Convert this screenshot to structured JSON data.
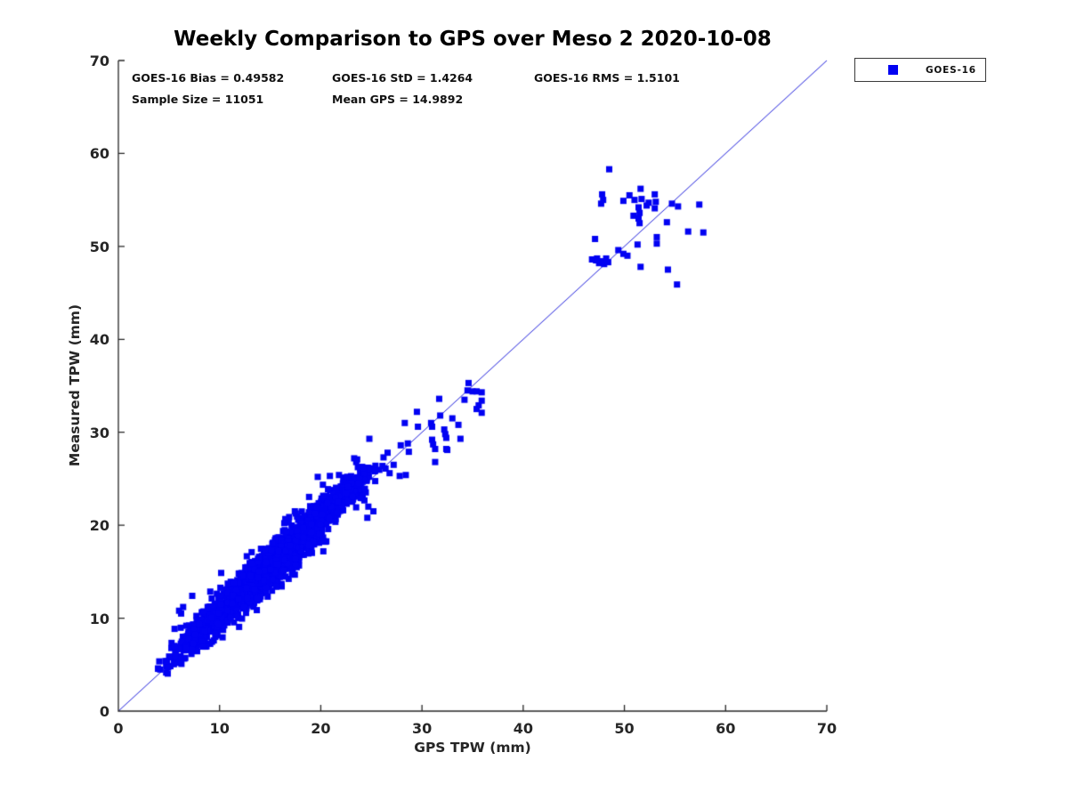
{
  "accent_colors": {
    "marker_blue": "#0202f2",
    "line_blue": "#2222dd",
    "axis_color": "#262626",
    "text_color": "#111111"
  },
  "chart_data": {
    "type": "scatter",
    "title": "Weekly Comparison to GPS over Meso 2 2020-10-08",
    "xlabel": "GPS TPW (mm)",
    "ylabel": "Measured TPW (mm)",
    "xlim": [
      0,
      70
    ],
    "ylim": [
      0,
      70
    ],
    "xticks": [
      0,
      10,
      20,
      30,
      40,
      50,
      60,
      70
    ],
    "yticks": [
      0,
      10,
      20,
      30,
      40,
      50,
      60,
      70
    ],
    "grid": false,
    "legend_position": "outside-top-right",
    "stats": {
      "bias_label": "GOES-16 Bias = 0.49582",
      "std_label": "GOES-16 StD = 1.4264",
      "rms_label": "GOES-16 RMS = 1.5101",
      "sample_label": "Sample Size = 11051",
      "mean_gps_label": "Mean GPS = 14.9892",
      "bias": 0.49582,
      "std": 1.4264,
      "rms": 1.5101,
      "sample_size": 11051,
      "mean_gps": 14.9892
    },
    "identity_line": {
      "from": [
        0,
        0
      ],
      "to": [
        70,
        70
      ],
      "color": "#2222dd",
      "width": 1
    },
    "series": [
      {
        "name": "GOES-16",
        "marker": "square",
        "color": "#0202f2",
        "marker_size_px": 7,
        "dense_band": {
          "comment": "solid band of ~11051 points hugging the 1:1 line from (4,5) to (26,26), drawn from these generation parameters",
          "seed": 20201008,
          "count": 1800,
          "t_min": 3.8,
          "t_max": 26.3,
          "slope": 1.035,
          "intercept": 0.1,
          "x_jitter_sd": 0.45,
          "y_noise_sd_base": 0.5,
          "y_noise_sd_peak": 1.15
        },
        "points": [
          [
            48.5,
            58.3
          ],
          [
            47.8,
            55.6
          ],
          [
            47.9,
            55.0
          ],
          [
            47.7,
            54.6
          ],
          [
            51.6,
            56.2
          ],
          [
            53.0,
            55.6
          ],
          [
            53.1,
            54.8
          ],
          [
            53.0,
            54.1
          ],
          [
            49.9,
            54.9
          ],
          [
            50.5,
            55.5
          ],
          [
            51.0,
            55.0
          ],
          [
            51.7,
            55.1
          ],
          [
            52.4,
            54.7
          ],
          [
            51.4,
            54.2
          ],
          [
            51.5,
            53.6
          ],
          [
            52.2,
            54.4
          ],
          [
            50.9,
            53.3
          ],
          [
            51.4,
            53.0
          ],
          [
            51.5,
            52.5
          ],
          [
            54.2,
            52.6
          ],
          [
            54.7,
            54.6
          ],
          [
            55.3,
            54.3
          ],
          [
            57.4,
            54.5
          ],
          [
            56.3,
            51.6
          ],
          [
            57.8,
            51.5
          ],
          [
            47.1,
            50.8
          ],
          [
            51.3,
            50.2
          ],
          [
            53.2,
            51.0
          ],
          [
            53.2,
            50.3
          ],
          [
            47.3,
            48.7
          ],
          [
            47.7,
            48.4
          ],
          [
            48.2,
            48.7
          ],
          [
            47.5,
            48.2
          ],
          [
            48.0,
            48.1
          ],
          [
            47.2,
            48.5
          ],
          [
            46.8,
            48.6
          ],
          [
            48.4,
            48.3
          ],
          [
            49.4,
            49.6
          ],
          [
            49.9,
            49.2
          ],
          [
            50.3,
            49.0
          ],
          [
            51.6,
            47.8
          ],
          [
            54.3,
            47.5
          ],
          [
            55.2,
            45.9
          ],
          [
            34.6,
            35.3
          ],
          [
            34.5,
            34.5
          ],
          [
            35.0,
            34.4
          ],
          [
            35.4,
            34.4
          ],
          [
            35.9,
            34.3
          ],
          [
            34.2,
            33.5
          ],
          [
            35.6,
            32.9
          ],
          [
            35.9,
            33.4
          ],
          [
            35.4,
            32.5
          ],
          [
            35.9,
            32.1
          ],
          [
            31.7,
            33.6
          ],
          [
            31.8,
            31.8
          ],
          [
            29.5,
            32.2
          ],
          [
            28.3,
            31.0
          ],
          [
            29.6,
            30.6
          ],
          [
            30.9,
            31.0
          ],
          [
            31.0,
            30.6
          ],
          [
            32.2,
            30.3
          ],
          [
            32.3,
            29.8
          ],
          [
            32.4,
            29.4
          ],
          [
            33.0,
            31.5
          ],
          [
            33.6,
            30.8
          ],
          [
            33.8,
            29.3
          ],
          [
            31.0,
            29.2
          ],
          [
            31.1,
            28.7
          ],
          [
            31.3,
            28.2
          ],
          [
            32.4,
            28.2
          ],
          [
            32.5,
            28.1
          ],
          [
            28.6,
            28.8
          ],
          [
            28.7,
            27.9
          ],
          [
            31.3,
            26.8
          ],
          [
            24.8,
            29.3
          ],
          [
            27.9,
            28.6
          ],
          [
            27.8,
            25.3
          ],
          [
            28.4,
            25.4
          ],
          [
            25.4,
            26.4
          ],
          [
            25.3,
            25.9
          ],
          [
            26.2,
            27.3
          ],
          [
            26.6,
            27.8
          ],
          [
            23.3,
            27.2
          ],
          [
            23.5,
            26.8
          ],
          [
            19.7,
            25.2
          ],
          [
            20.9,
            25.3
          ],
          [
            21.8,
            25.4
          ],
          [
            26.4,
            26.1
          ],
          [
            26.8,
            25.6
          ],
          [
            27.2,
            26.5
          ],
          [
            24.6,
            20.8
          ],
          [
            24.7,
            22.0
          ],
          [
            25.2,
            21.5
          ],
          [
            6.2,
            10.5
          ],
          [
            6.4,
            11.2
          ],
          [
            6.0,
            10.8
          ],
          [
            7.3,
            12.4
          ]
        ]
      }
    ]
  }
}
